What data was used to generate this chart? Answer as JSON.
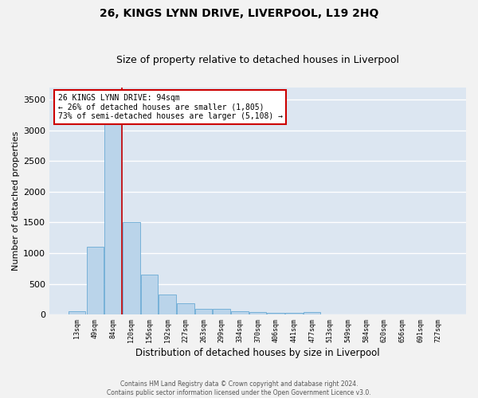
{
  "title": "26, KINGS LYNN DRIVE, LIVERPOOL, L19 2HQ",
  "subtitle": "Size of property relative to detached houses in Liverpool",
  "xlabel": "Distribution of detached houses by size in Liverpool",
  "ylabel": "Number of detached properties",
  "categories": [
    "13sqm",
    "49sqm",
    "84sqm",
    "120sqm",
    "156sqm",
    "192sqm",
    "227sqm",
    "263sqm",
    "299sqm",
    "334sqm",
    "370sqm",
    "406sqm",
    "441sqm",
    "477sqm",
    "513sqm",
    "549sqm",
    "584sqm",
    "620sqm",
    "656sqm",
    "691sqm",
    "727sqm"
  ],
  "values": [
    50,
    1100,
    3300,
    1500,
    650,
    330,
    180,
    90,
    90,
    50,
    40,
    25,
    25,
    35,
    0,
    0,
    0,
    0,
    0,
    0,
    0
  ],
  "bar_color": "#bad4ea",
  "bar_edge_color": "#6aaad4",
  "red_line_index": 2,
  "annotation_text": "26 KINGS LYNN DRIVE: 94sqm\n← 26% of detached houses are smaller (1,805)\n73% of semi-detached houses are larger (5,108) →",
  "annotation_box_color": "#ffffff",
  "annotation_box_edge": "#cc0000",
  "ylim": [
    0,
    3700
  ],
  "yticks": [
    0,
    500,
    1000,
    1500,
    2000,
    2500,
    3000,
    3500
  ],
  "background_color": "#dce6f1",
  "grid_color": "#ffffff",
  "fig_background": "#f2f2f2",
  "footer_line1": "Contains HM Land Registry data © Crown copyright and database right 2024.",
  "footer_line2": "Contains public sector information licensed under the Open Government Licence v3.0.",
  "title_fontsize": 10,
  "subtitle_fontsize": 9,
  "xlabel_fontsize": 8.5,
  "ylabel_fontsize": 8
}
